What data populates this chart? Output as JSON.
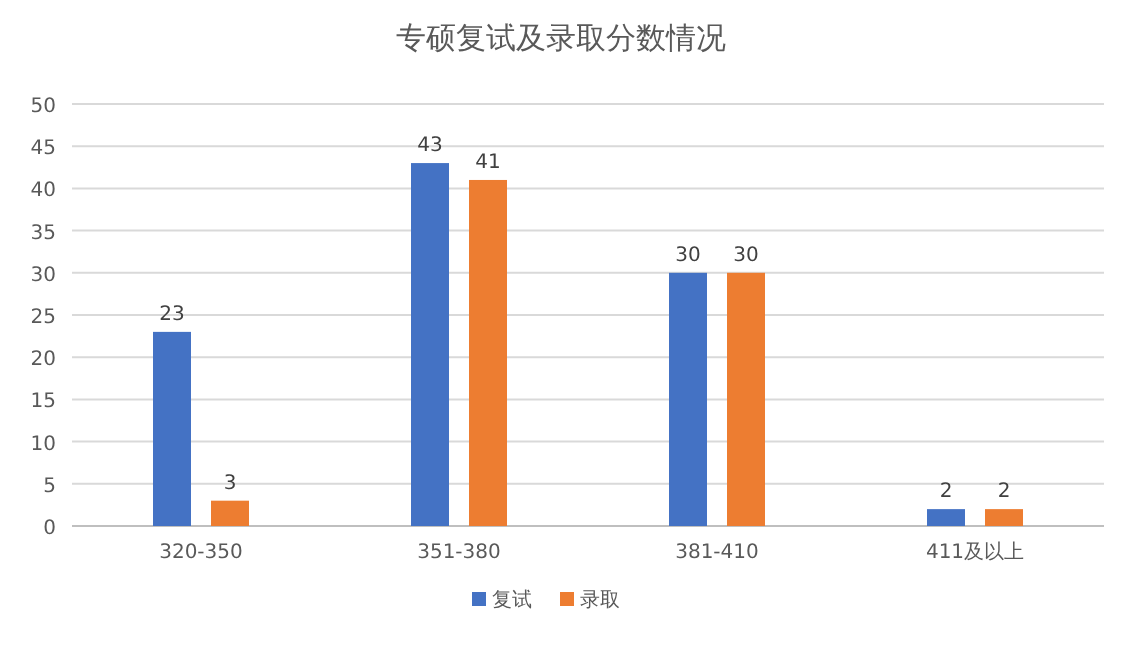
{
  "chart_data": {
    "type": "bar",
    "title": "专硕复试及录取分数情况",
    "categories": [
      "320-350",
      "351-380",
      "381-410",
      "411及以上"
    ],
    "series": [
      {
        "name": "复试",
        "color": "#4472c4",
        "values": [
          23,
          43,
          30,
          2
        ]
      },
      {
        "name": "录取",
        "color": "#ed7d31",
        "values": [
          3,
          41,
          30,
          2
        ]
      }
    ],
    "ylim": [
      0,
      50
    ],
    "yticks": [
      0,
      5,
      10,
      15,
      20,
      25,
      30,
      35,
      40,
      45,
      50
    ],
    "grid": "y",
    "legend": "bottom",
    "data_labels": true
  }
}
